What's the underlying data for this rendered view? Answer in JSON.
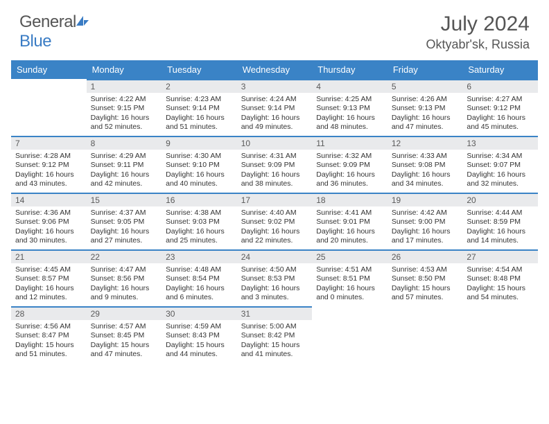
{
  "brand": {
    "name_gray": "General",
    "name_blue": "Blue"
  },
  "title": "July 2024",
  "location": "Oktyabr'sk, Russia",
  "colors": {
    "header_bg": "#3a83c6",
    "daybar_bg": "#e9eaec",
    "daybar_border": "#3a83c6",
    "text": "#333333",
    "title_text": "#555555"
  },
  "weekdays": [
    "Sunday",
    "Monday",
    "Tuesday",
    "Wednesday",
    "Thursday",
    "Friday",
    "Saturday"
  ],
  "weeks": [
    [
      null,
      {
        "n": "1",
        "sr": "4:22 AM",
        "ss": "9:15 PM",
        "dl": "16 hours and 52 minutes."
      },
      {
        "n": "2",
        "sr": "4:23 AM",
        "ss": "9:14 PM",
        "dl": "16 hours and 51 minutes."
      },
      {
        "n": "3",
        "sr": "4:24 AM",
        "ss": "9:14 PM",
        "dl": "16 hours and 49 minutes."
      },
      {
        "n": "4",
        "sr": "4:25 AM",
        "ss": "9:13 PM",
        "dl": "16 hours and 48 minutes."
      },
      {
        "n": "5",
        "sr": "4:26 AM",
        "ss": "9:13 PM",
        "dl": "16 hours and 47 minutes."
      },
      {
        "n": "6",
        "sr": "4:27 AM",
        "ss": "9:12 PM",
        "dl": "16 hours and 45 minutes."
      }
    ],
    [
      {
        "n": "7",
        "sr": "4:28 AM",
        "ss": "9:12 PM",
        "dl": "16 hours and 43 minutes."
      },
      {
        "n": "8",
        "sr": "4:29 AM",
        "ss": "9:11 PM",
        "dl": "16 hours and 42 minutes."
      },
      {
        "n": "9",
        "sr": "4:30 AM",
        "ss": "9:10 PM",
        "dl": "16 hours and 40 minutes."
      },
      {
        "n": "10",
        "sr": "4:31 AM",
        "ss": "9:09 PM",
        "dl": "16 hours and 38 minutes."
      },
      {
        "n": "11",
        "sr": "4:32 AM",
        "ss": "9:09 PM",
        "dl": "16 hours and 36 minutes."
      },
      {
        "n": "12",
        "sr": "4:33 AM",
        "ss": "9:08 PM",
        "dl": "16 hours and 34 minutes."
      },
      {
        "n": "13",
        "sr": "4:34 AM",
        "ss": "9:07 PM",
        "dl": "16 hours and 32 minutes."
      }
    ],
    [
      {
        "n": "14",
        "sr": "4:36 AM",
        "ss": "9:06 PM",
        "dl": "16 hours and 30 minutes."
      },
      {
        "n": "15",
        "sr": "4:37 AM",
        "ss": "9:05 PM",
        "dl": "16 hours and 27 minutes."
      },
      {
        "n": "16",
        "sr": "4:38 AM",
        "ss": "9:03 PM",
        "dl": "16 hours and 25 minutes."
      },
      {
        "n": "17",
        "sr": "4:40 AM",
        "ss": "9:02 PM",
        "dl": "16 hours and 22 minutes."
      },
      {
        "n": "18",
        "sr": "4:41 AM",
        "ss": "9:01 PM",
        "dl": "16 hours and 20 minutes."
      },
      {
        "n": "19",
        "sr": "4:42 AM",
        "ss": "9:00 PM",
        "dl": "16 hours and 17 minutes."
      },
      {
        "n": "20",
        "sr": "4:44 AM",
        "ss": "8:59 PM",
        "dl": "16 hours and 14 minutes."
      }
    ],
    [
      {
        "n": "21",
        "sr": "4:45 AM",
        "ss": "8:57 PM",
        "dl": "16 hours and 12 minutes."
      },
      {
        "n": "22",
        "sr": "4:47 AM",
        "ss": "8:56 PM",
        "dl": "16 hours and 9 minutes."
      },
      {
        "n": "23",
        "sr": "4:48 AM",
        "ss": "8:54 PM",
        "dl": "16 hours and 6 minutes."
      },
      {
        "n": "24",
        "sr": "4:50 AM",
        "ss": "8:53 PM",
        "dl": "16 hours and 3 minutes."
      },
      {
        "n": "25",
        "sr": "4:51 AM",
        "ss": "8:51 PM",
        "dl": "16 hours and 0 minutes."
      },
      {
        "n": "26",
        "sr": "4:53 AM",
        "ss": "8:50 PM",
        "dl": "15 hours and 57 minutes."
      },
      {
        "n": "27",
        "sr": "4:54 AM",
        "ss": "8:48 PM",
        "dl": "15 hours and 54 minutes."
      }
    ],
    [
      {
        "n": "28",
        "sr": "4:56 AM",
        "ss": "8:47 PM",
        "dl": "15 hours and 51 minutes."
      },
      {
        "n": "29",
        "sr": "4:57 AM",
        "ss": "8:45 PM",
        "dl": "15 hours and 47 minutes."
      },
      {
        "n": "30",
        "sr": "4:59 AM",
        "ss": "8:43 PM",
        "dl": "15 hours and 44 minutes."
      },
      {
        "n": "31",
        "sr": "5:00 AM",
        "ss": "8:42 PM",
        "dl": "15 hours and 41 minutes."
      },
      null,
      null,
      null
    ]
  ],
  "labels": {
    "sunrise": "Sunrise:",
    "sunset": "Sunset:",
    "daylight": "Daylight:"
  }
}
